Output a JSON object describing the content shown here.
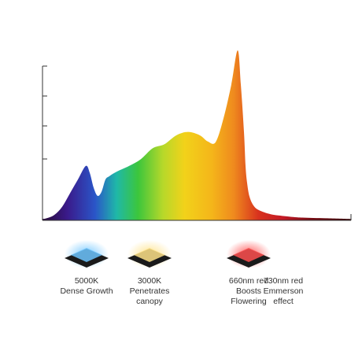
{
  "chart_data": {
    "type": "area",
    "title": "",
    "xlabel": "",
    "ylabel": "",
    "x": [
      0,
      5,
      15,
      25,
      35,
      45,
      55,
      60,
      65,
      70,
      75,
      80,
      85,
      95,
      110,
      125,
      140,
      155,
      170,
      185,
      200,
      210,
      220,
      230,
      240,
      248,
      252,
      256,
      258,
      260,
      263,
      268,
      275,
      290,
      310,
      330,
      360,
      392
    ],
    "y": [
      0.02,
      0.03,
      0.08,
      0.2,
      0.4,
      0.6,
      0.8,
      0.7,
      0.48,
      0.36,
      0.42,
      0.6,
      0.65,
      0.72,
      0.8,
      0.9,
      1.06,
      1.12,
      1.25,
      1.3,
      1.25,
      1.16,
      1.15,
      1.5,
      2.0,
      2.5,
      2.0,
      1.3,
      0.8,
      0.55,
      0.35,
      0.22,
      0.15,
      0.09,
      0.06,
      0.04,
      0.03,
      0.02
    ],
    "ylim": [
      0,
      2.5
    ],
    "grid": false,
    "gradient_stops": [
      {
        "at": 0.0,
        "color": "#2a0c3a"
      },
      {
        "at": 0.08,
        "color": "#3a1a8a"
      },
      {
        "at": 0.17,
        "color": "#2a55c8"
      },
      {
        "at": 0.24,
        "color": "#1fb8a8"
      },
      {
        "at": 0.31,
        "color": "#3cc63c"
      },
      {
        "at": 0.39,
        "color": "#b6d82a"
      },
      {
        "at": 0.46,
        "color": "#f2d21a"
      },
      {
        "at": 0.55,
        "color": "#f4b51a"
      },
      {
        "at": 0.62,
        "color": "#ef8a1e"
      },
      {
        "at": 0.7,
        "color": "#d8321e"
      },
      {
        "at": 0.78,
        "color": "#c41a26"
      },
      {
        "at": 0.87,
        "color": "#7a0c14"
      },
      {
        "at": 1.0,
        "color": "#3a0406"
      }
    ],
    "annotations": [
      {
        "lines": [
          "5000K",
          "Dense Growth"
        ],
        "color": "#6fc6ff"
      },
      {
        "lines": [
          "3000K",
          "Penetrates",
          "canopy"
        ],
        "color": "#ffe38a"
      },
      {
        "lines": [
          "660nm red",
          "Boosts",
          "Flowering"
        ],
        "color": "#ff5050"
      },
      {
        "lines": [
          "730nm red",
          "Emmerson",
          "effect"
        ],
        "color": "#5a0a0a"
      }
    ]
  }
}
